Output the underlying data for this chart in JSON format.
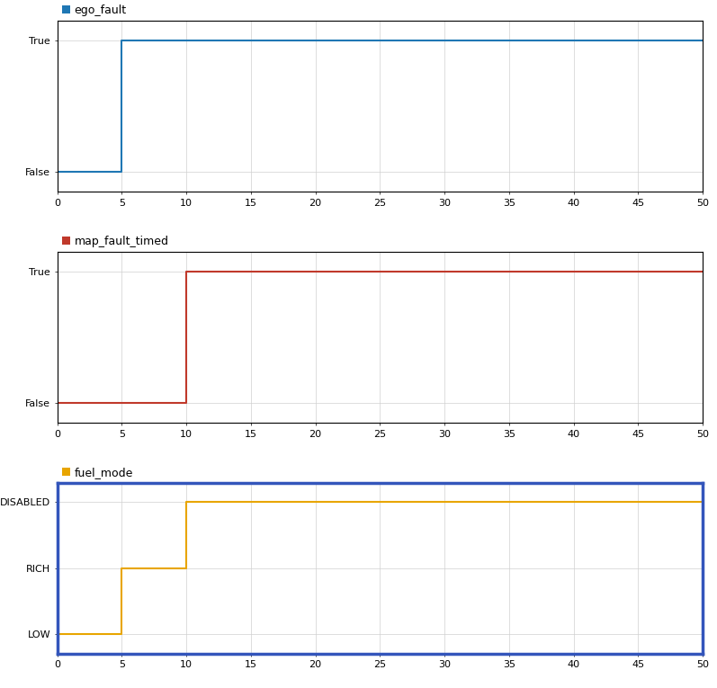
{
  "subplots": [
    {
      "label": "ego_fault",
      "color": "#1f77b4",
      "x": [
        0,
        5,
        5,
        50
      ],
      "y": [
        0,
        0,
        1,
        1
      ],
      "yticks": [
        0,
        1
      ],
      "yticklabels": [
        "False",
        "True"
      ],
      "ylim": [
        -0.15,
        1.15
      ],
      "has_border": false
    },
    {
      "label": "map_fault_timed",
      "color": "#c0392b",
      "x": [
        0,
        10,
        10,
        50
      ],
      "y": [
        0,
        0,
        1,
        1
      ],
      "yticks": [
        0,
        1
      ],
      "yticklabels": [
        "False",
        "True"
      ],
      "ylim": [
        -0.15,
        1.15
      ],
      "has_border": false
    },
    {
      "label": "fuel_mode",
      "color": "#e8a500",
      "x": [
        0,
        5,
        5,
        10,
        10,
        50
      ],
      "y": [
        0,
        0,
        1,
        1,
        2,
        2
      ],
      "yticks": [
        0,
        1,
        2
      ],
      "yticklabels": [
        "LOW",
        "RICH",
        "DISABLED"
      ],
      "ylim": [
        -0.3,
        2.3
      ],
      "has_border": true
    }
  ],
  "xlim": [
    0,
    50
  ],
  "xticks": [
    0,
    5,
    10,
    15,
    20,
    25,
    30,
    35,
    40,
    45,
    50
  ],
  "grid_color": "#d0d0d0",
  "background_color": "#ffffff",
  "border_color": "#3355bb",
  "linewidth": 1.5,
  "legend_square_size": 8,
  "legend_fontsize": 9,
  "tick_fontsize": 8
}
